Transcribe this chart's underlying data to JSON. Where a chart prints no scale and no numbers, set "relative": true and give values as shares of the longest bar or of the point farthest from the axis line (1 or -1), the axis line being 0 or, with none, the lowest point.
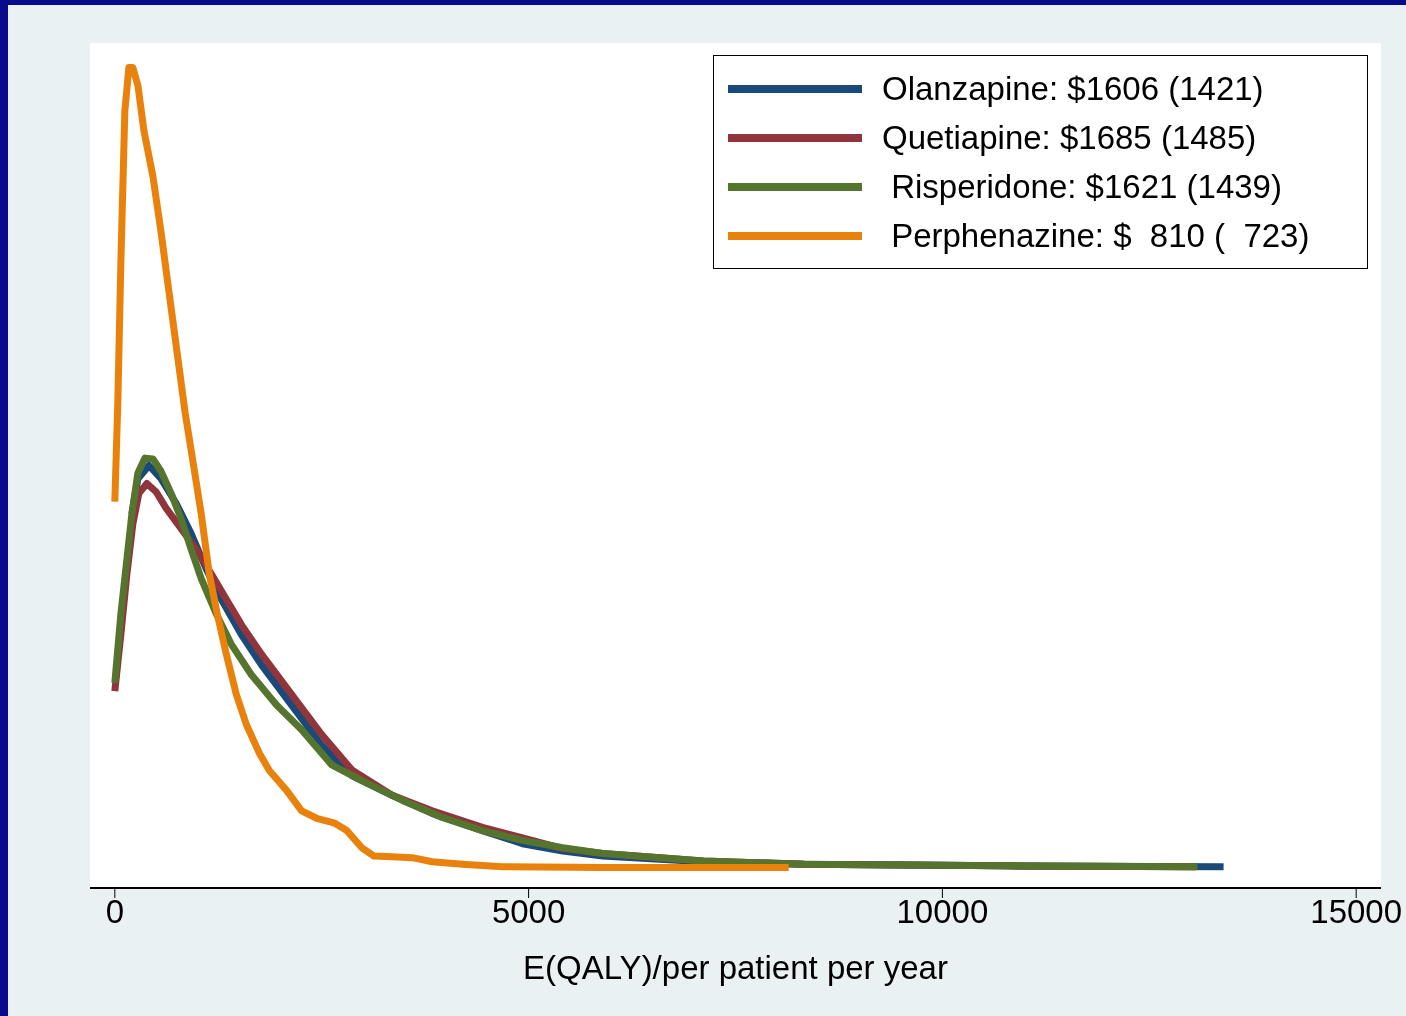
{
  "chart_data": {
    "type": "line",
    "xlabel": "E(QALY)/per patient per year",
    "xlim": [
      -300,
      15300
    ],
    "xticks": [
      0,
      5000,
      10000,
      15000
    ],
    "relative": true,
    "grid": false,
    "legend": "top right",
    "marker": "none",
    "line_style": "solid",
    "series": [
      {
        "name": "Olanzapine: $1606 (1421)",
        "color": "#1a4a7a",
        "x": [
          206,
          279,
          413,
          558,
          740,
          922,
          1104,
          1286,
          1529,
          1772,
          2136,
          2500,
          2864,
          3350,
          3835,
          4442,
          4927,
          5413,
          5898,
          7112,
          8325,
          10752,
          13398
        ],
        "values": [
          0.456,
          0.499,
          0.515,
          0.499,
          0.469,
          0.432,
          0.389,
          0.352,
          0.309,
          0.272,
          0.223,
          0.174,
          0.137,
          0.113,
          0.091,
          0.07,
          0.054,
          0.045,
          0.039,
          0.032,
          0.029,
          0.027,
          0.026
        ]
      },
      {
        "name": "Quetiapine: $1685 (1485)",
        "color": "#90353b",
        "x": [
          0,
          73,
          146,
          218,
          291,
          388,
          498,
          619,
          801,
          983,
          1165,
          1347,
          1529,
          1772,
          2136,
          2500,
          2864,
          3350,
          3835,
          4442,
          4927,
          5413,
          5898,
          7112,
          8325,
          10752,
          13058
        ],
        "values": [
          0.24,
          0.309,
          0.383,
          0.444,
          0.481,
          0.493,
          0.483,
          0.463,
          0.438,
          0.413,
          0.383,
          0.352,
          0.321,
          0.285,
          0.236,
          0.187,
          0.144,
          0.113,
          0.094,
          0.074,
          0.061,
          0.048,
          0.042,
          0.033,
          0.029,
          0.027,
          0.026
        ]
      },
      {
        "name": " Risperidone: $1621 (1439)",
        "color": "#55752f",
        "x": [
          0,
          73,
          146,
          206,
          279,
          364,
          461,
          558,
          680,
          801,
          922,
          1044,
          1226,
          1408,
          1650,
          1954,
          2257,
          2621,
          2985,
          3471,
          3956,
          4442,
          4927,
          5413,
          5898,
          7112,
          8325,
          10752,
          13083
        ],
        "values": [
          0.25,
          0.334,
          0.401,
          0.456,
          0.506,
          0.524,
          0.523,
          0.508,
          0.481,
          0.45,
          0.413,
          0.377,
          0.334,
          0.297,
          0.26,
          0.223,
          0.193,
          0.15,
          0.131,
          0.107,
          0.086,
          0.07,
          0.058,
          0.049,
          0.042,
          0.033,
          0.029,
          0.027,
          0.026
        ]
      },
      {
        "name": " Perphenazine: $  810 (  723)",
        "color": "#e8820c",
        "x": [
          0,
          36,
          73,
          121,
          170,
          218,
          279,
          352,
          461,
          558,
          655,
          752,
          850,
          947,
          1044,
          1141,
          1238,
          1347,
          1468,
          1590,
          1748,
          1869,
          2075,
          2257,
          2439,
          2658,
          2803,
          2985,
          3131,
          3350,
          3592,
          3835,
          4199,
          4684,
          5898,
          7112,
          8143
        ],
        "values": [
          0.471,
          0.591,
          0.763,
          0.947,
          1,
          1,
          0.978,
          0.923,
          0.867,
          0.8,
          0.726,
          0.653,
          0.579,
          0.518,
          0.456,
          0.383,
          0.334,
          0.285,
          0.236,
          0.199,
          0.164,
          0.143,
          0.119,
          0.094,
          0.085,
          0.079,
          0.07,
          0.049,
          0.039,
          0.038,
          0.037,
          0.032,
          0.029,
          0.026,
          0.025,
          0.025,
          0.025
        ]
      }
    ]
  }
}
